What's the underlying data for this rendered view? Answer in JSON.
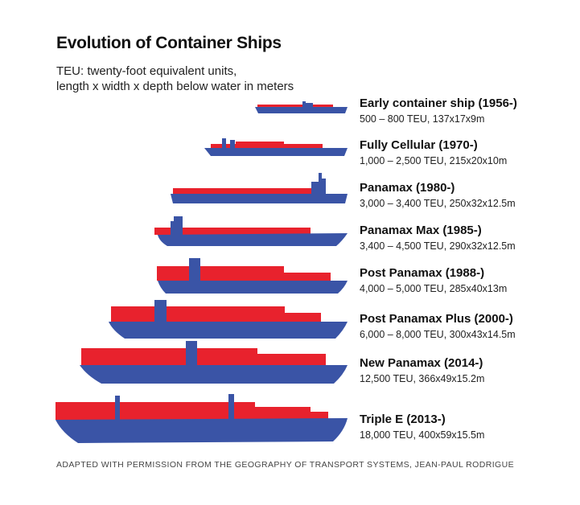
{
  "title": "Evolution of Container Ships",
  "subtitle": {
    "line1": "TEU: twenty-foot equivalent units,",
    "line2": "length x width x depth below water in meters"
  },
  "colors": {
    "hull": "#3a54a6",
    "containers": "#e8222d",
    "text": "#111111"
  },
  "ships": [
    {
      "name": "Early container ship (1956-)",
      "spec": "500 – 800 TEU, 137x17x9m"
    },
    {
      "name": "Fully Cellular (1970-)",
      "spec": "1,000 – 2,500 TEU, 215x20x10m"
    },
    {
      "name": "Panamax (1980-)",
      "spec": "3,000 – 3,400 TEU, 250x32x12.5m"
    },
    {
      "name": "Panamax Max (1985-)",
      "spec": "3,400 – 4,500 TEU, 290x32x12.5m"
    },
    {
      "name": "Post Panamax (1988-)",
      "spec": "4,000 – 5,000 TEU, 285x40x13m"
    },
    {
      "name": "Post Panamax Plus (2000-)",
      "spec": "6,000 – 8,000 TEU, 300x43x14.5m"
    },
    {
      "name": "New Panamax (2014-)",
      "spec": "12,500 TEU, 366x49x15.2m"
    },
    {
      "name": "Triple E (2013-)",
      "spec": "18,000 TEU, 400x59x15.5m"
    }
  ],
  "source": "ADAPTED WITH PERMISSION FROM THE GEOGRAPHY OF TRANSPORT SYSTEMS, JEAN-PAUL RODRIGUE"
}
